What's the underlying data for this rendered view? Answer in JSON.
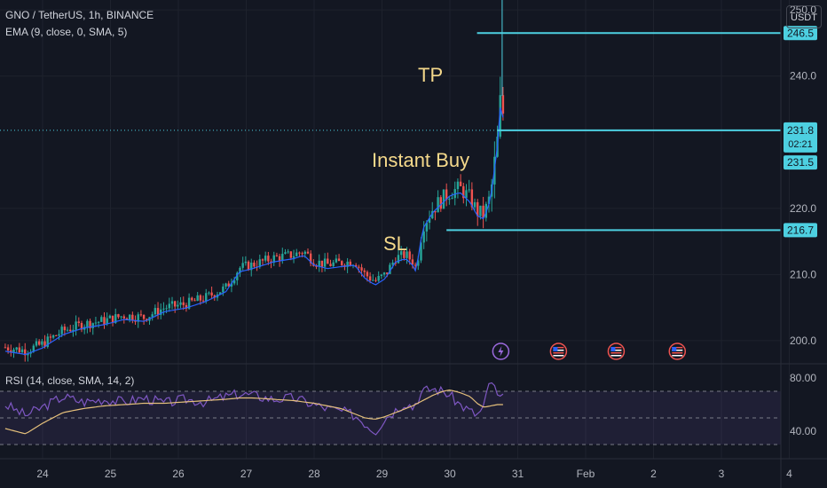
{
  "header": {
    "symbol_line": "GNO / TetherUS, 1h, BINANCE",
    "ema_line": "EMA (9, close, 0, SMA, 5)",
    "currency": "USDT"
  },
  "rsi": {
    "label": "RSI (14, close, SMA, 14, 2)",
    "levels": [
      70,
      50,
      30
    ],
    "ticks": [
      "80.00",
      "40.00"
    ]
  },
  "colors": {
    "background": "#131722",
    "up": "#26a69a",
    "down": "#ef5350",
    "ema": "#2962ff",
    "rsi": "#7e57c2",
    "rsi_ma": "#e5c07b",
    "level_line": "#4dd0e1",
    "annotation": "#f5d98b"
  },
  "annotations": {
    "tp": "TP",
    "instant_buy": "Instant Buy",
    "sl": "SL"
  },
  "events": [
    {
      "icon": "lightning-icon",
      "day": 30.75
    },
    {
      "icon": "us-flag-icon",
      "day": 31.6
    },
    {
      "icon": "us-flag-icon",
      "day": 32.45
    },
    {
      "icon": "us-flag-icon",
      "day": 33.35
    }
  ],
  "chart_data": {
    "type": "candlestick",
    "x_axis_labels": [
      {
        "label": "24",
        "x": 24
      },
      {
        "label": "25",
        "x": 25
      },
      {
        "label": "26",
        "x": 26
      },
      {
        "label": "27",
        "x": 27
      },
      {
        "label": "28",
        "x": 28
      },
      {
        "label": "29",
        "x": 29
      },
      {
        "label": "30",
        "x": 30
      },
      {
        "label": "31",
        "x": 31
      },
      {
        "label": "Feb",
        "x": 32
      },
      {
        "label": "2",
        "x": 33
      },
      {
        "label": "3",
        "x": 34
      },
      {
        "label": "4",
        "x": 35
      }
    ],
    "y_ticks": [
      "250.0",
      "240.0",
      "220.0",
      "210.0",
      "200.0"
    ],
    "ylim": [
      196.5,
      251.5
    ],
    "rsi_ylim": [
      20,
      90
    ],
    "price_lines": [
      {
        "label": "246.5",
        "value": 246.5,
        "name": "tp-line",
        "start_day": 30.4
      },
      {
        "label": "231.8",
        "value": 231.8,
        "name": "instant-buy-line",
        "start_day": 30.7
      },
      {
        "label": "216.7",
        "value": 216.7,
        "name": "sl-line",
        "start_day": 29.95
      }
    ],
    "last_price": {
      "value": "231.8",
      "countdown": "02:21"
    },
    "ema_value": {
      "value": "231.5",
      "level": 231.5
    },
    "price_path": [
      [
        23.45,
        199.0
      ],
      [
        23.75,
        198.5
      ],
      [
        24.0,
        199.5
      ],
      [
        24.3,
        201.5
      ],
      [
        24.6,
        202.5
      ],
      [
        24.9,
        203.0
      ],
      [
        25.2,
        203.8
      ],
      [
        25.5,
        203.5
      ],
      [
        25.8,
        205.0
      ],
      [
        26.1,
        205.5
      ],
      [
        26.4,
        206.5
      ],
      [
        26.7,
        208.0
      ],
      [
        26.9,
        211.0
      ],
      [
        27.1,
        211.5
      ],
      [
        27.4,
        212.5
      ],
      [
        27.7,
        213.0
      ],
      [
        27.85,
        213.5
      ],
      [
        28.0,
        212.0
      ],
      [
        28.2,
        211.5
      ],
      [
        28.4,
        211.8
      ],
      [
        28.6,
        212.0
      ],
      [
        28.75,
        210.0
      ],
      [
        28.9,
        209.0
      ],
      [
        29.05,
        210.0
      ],
      [
        29.2,
        212.5
      ],
      [
        29.35,
        213.0
      ],
      [
        29.45,
        212.0
      ],
      [
        29.5,
        211.0
      ],
      [
        29.6,
        217.5
      ],
      [
        29.75,
        220.0
      ],
      [
        29.9,
        221.5
      ],
      [
        30.0,
        222.5
      ],
      [
        30.15,
        223.0
      ],
      [
        30.3,
        221.5
      ],
      [
        30.4,
        219.5
      ],
      [
        30.5,
        219.0
      ],
      [
        30.6,
        222.0
      ],
      [
        30.65,
        226.0
      ],
      [
        30.7,
        230.0
      ],
      [
        30.75,
        237.0
      ],
      [
        30.8,
        233.0
      ],
      [
        30.82,
        231.8
      ]
    ],
    "rsi_path": [
      [
        23.45,
        60
      ],
      [
        23.75,
        52
      ],
      [
        24.0,
        58
      ],
      [
        24.3,
        66
      ],
      [
        24.6,
        62
      ],
      [
        24.9,
        64
      ],
      [
        25.2,
        62
      ],
      [
        25.5,
        65
      ],
      [
        25.8,
        61
      ],
      [
        26.1,
        64
      ],
      [
        26.4,
        62
      ],
      [
        26.7,
        66
      ],
      [
        26.9,
        68
      ],
      [
        27.1,
        67
      ],
      [
        27.4,
        64
      ],
      [
        27.7,
        65
      ],
      [
        28.0,
        60
      ],
      [
        28.2,
        57
      ],
      [
        28.4,
        55
      ],
      [
        28.6,
        52
      ],
      [
        28.75,
        46
      ],
      [
        28.9,
        40
      ],
      [
        29.05,
        50
      ],
      [
        29.2,
        56
      ],
      [
        29.35,
        62
      ],
      [
        29.45,
        58
      ],
      [
        29.6,
        70
      ],
      [
        29.75,
        72
      ],
      [
        29.9,
        70
      ],
      [
        30.0,
        67
      ],
      [
        30.15,
        60
      ],
      [
        30.3,
        55
      ],
      [
        30.4,
        52
      ],
      [
        30.5,
        58
      ],
      [
        30.6,
        80
      ],
      [
        30.7,
        66
      ],
      [
        30.82,
        64
      ]
    ],
    "rsi_ma_path": [
      [
        23.45,
        42
      ],
      [
        23.75,
        38
      ],
      [
        24.0,
        46
      ],
      [
        24.3,
        54
      ],
      [
        24.6,
        57
      ],
      [
        24.9,
        59
      ],
      [
        25.2,
        60
      ],
      [
        25.5,
        61
      ],
      [
        25.8,
        61
      ],
      [
        26.1,
        62
      ],
      [
        26.4,
        63
      ],
      [
        26.7,
        64
      ],
      [
        26.9,
        65
      ],
      [
        27.1,
        65
      ],
      [
        27.4,
        64
      ],
      [
        27.7,
        63
      ],
      [
        28.0,
        61
      ],
      [
        28.2,
        59
      ],
      [
        28.4,
        57
      ],
      [
        28.6,
        53
      ],
      [
        28.75,
        50
      ],
      [
        28.9,
        49
      ],
      [
        29.05,
        51
      ],
      [
        29.2,
        54
      ],
      [
        29.35,
        57
      ],
      [
        29.45,
        59
      ],
      [
        29.6,
        63
      ],
      [
        29.75,
        67
      ],
      [
        29.9,
        70
      ],
      [
        30.0,
        71
      ],
      [
        30.15,
        69
      ],
      [
        30.3,
        66
      ],
      [
        30.4,
        61
      ],
      [
        30.5,
        58
      ],
      [
        30.6,
        59
      ],
      [
        30.7,
        60
      ],
      [
        30.82,
        60
      ]
    ]
  }
}
